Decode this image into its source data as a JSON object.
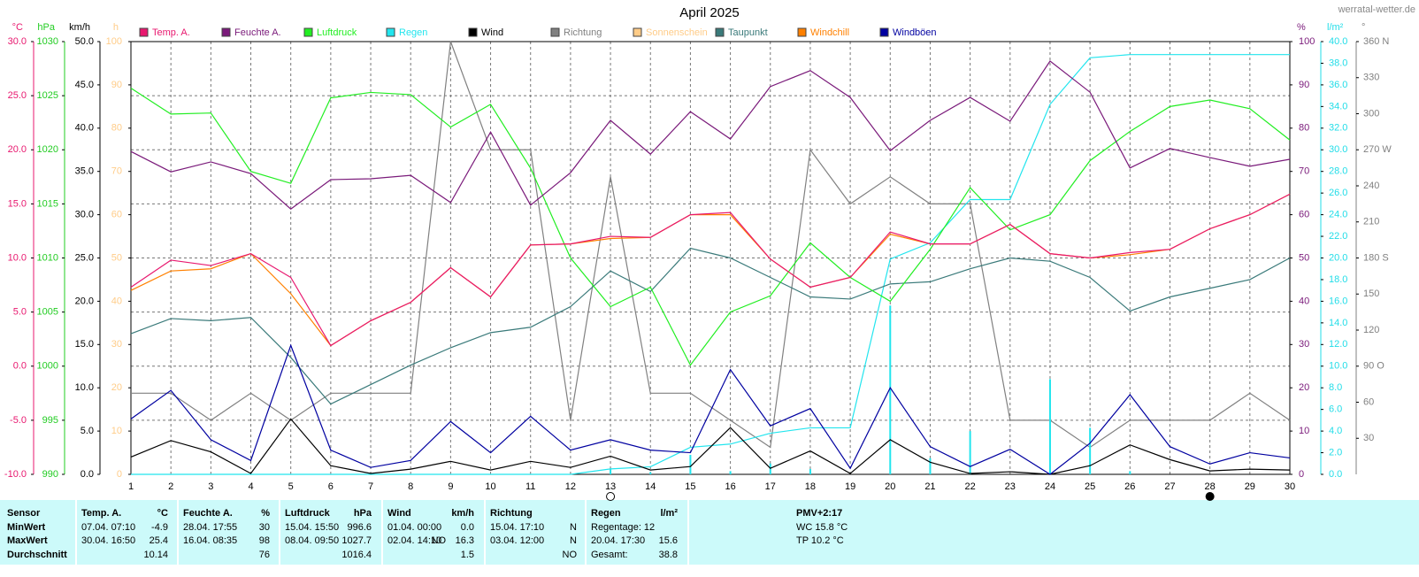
{
  "site": "werratal-wetter.de",
  "chart_data": {
    "type": "line",
    "title": "April 2025",
    "grid": true,
    "x": [
      1,
      2,
      3,
      4,
      5,
      6,
      7,
      8,
      9,
      10,
      11,
      12,
      13,
      14,
      15,
      16,
      17,
      18,
      19,
      20,
      21,
      22,
      23,
      24,
      25,
      26,
      27,
      28,
      29,
      30
    ],
    "xlim": [
      1,
      30
    ],
    "axes": [
      {
        "id": "temp",
        "side": "left",
        "unit": "°C",
        "color": "#e8186f",
        "lim": [
          -10,
          30
        ],
        "ticks": [
          {
            "value": 30,
            "label": "30.0"
          },
          {
            "value": 25,
            "label": "25.0"
          },
          {
            "value": 20,
            "label": "20.0"
          },
          {
            "value": 15,
            "label": "15.0"
          },
          {
            "value": 10,
            "label": "10.0"
          },
          {
            "value": 5,
            "label": "5.0"
          },
          {
            "value": 0,
            "label": "0.0"
          },
          {
            "value": -5,
            "label": "-5.0"
          },
          {
            "value": -10,
            "label": "-10.0"
          }
        ]
      },
      {
        "id": "hpa",
        "side": "left",
        "unit": "hPa",
        "color": "#22cc22",
        "lim": [
          990,
          1030
        ],
        "ticks": [
          1030,
          1025,
          1020,
          1015,
          1010,
          1005,
          1000,
          995,
          990
        ]
      },
      {
        "id": "kmh",
        "side": "left",
        "unit": "km/h",
        "color": "#000000",
        "lim": [
          0,
          50
        ],
        "ticks": [
          {
            "value": 50,
            "label": "50.0"
          },
          {
            "value": 45,
            "label": "45.0"
          },
          {
            "value": 40,
            "label": "40.0"
          },
          {
            "value": 35,
            "label": "35.0"
          },
          {
            "value": 30,
            "label": "30.0"
          },
          {
            "value": 25,
            "label": "25.0"
          },
          {
            "value": 20,
            "label": "20.0"
          },
          {
            "value": 15,
            "label": "15.0"
          },
          {
            "value": 10,
            "label": "10.0"
          },
          {
            "value": 5,
            "label": "5.0"
          },
          {
            "value": 0,
            "label": "0.0"
          }
        ]
      },
      {
        "id": "h",
        "side": "left",
        "unit": "h",
        "color": "#ffcc88",
        "lim": [
          0,
          100
        ],
        "ticks": [
          100,
          90,
          80,
          70,
          60,
          50,
          40,
          30,
          20,
          10,
          0
        ]
      },
      {
        "id": "pct",
        "side": "right",
        "unit": "%",
        "color": "#7a1a7a",
        "lim": [
          0,
          100
        ],
        "ticks": [
          100,
          90,
          80,
          70,
          60,
          50,
          40,
          30,
          20,
          10,
          0
        ]
      },
      {
        "id": "rain",
        "side": "right",
        "unit": "l/m²",
        "color": "#22dde8",
        "lim": [
          0,
          40
        ],
        "ticks": [
          {
            "value": 40,
            "label": "40.0"
          },
          {
            "value": 38,
            "label": "38.0"
          },
          {
            "value": 36,
            "label": "36.0"
          },
          {
            "value": 34,
            "label": "34.0"
          },
          {
            "value": 32,
            "label": "32.0"
          },
          {
            "value": 30,
            "label": "30.0"
          },
          {
            "value": 28,
            "label": "28.0"
          },
          {
            "value": 26,
            "label": "26.0"
          },
          {
            "value": 24,
            "label": "24.0"
          },
          {
            "value": 22,
            "label": "22.0"
          },
          {
            "value": 20,
            "label": "20.0"
          },
          {
            "value": 18,
            "label": "18.0"
          },
          {
            "value": 16,
            "label": "16.0"
          },
          {
            "value": 14,
            "label": "14.0"
          },
          {
            "value": 12,
            "label": "12.0"
          },
          {
            "value": 10,
            "label": "10.0"
          },
          {
            "value": 8,
            "label": "8.0"
          },
          {
            "value": 6,
            "label": "6.0"
          },
          {
            "value": 4,
            "label": "4.0"
          },
          {
            "value": 2,
            "label": "2.0"
          },
          {
            "value": 0,
            "label": "0.0"
          }
        ]
      },
      {
        "id": "dir",
        "side": "right",
        "unit": "°",
        "color": "#808080",
        "lim": [
          0,
          360
        ],
        "ticks": [
          {
            "value": 360,
            "label": "360 N"
          },
          330,
          300,
          {
            "value": 270,
            "label": "270 W"
          },
          240,
          210,
          {
            "value": 180,
            "label": "180 S"
          },
          150,
          120,
          {
            "value": 90,
            "label": "90 O"
          },
          60,
          30
        ]
      }
    ],
    "series": [
      {
        "name": "Temp. A.",
        "color": "#e8186f",
        "axis": "temp",
        "values": [
          7.3,
          9.8,
          9.3,
          10.4,
          8.2,
          1.9,
          4.2,
          5.9,
          9.1,
          6.4,
          11.2,
          11.3,
          12.0,
          11.9,
          14.0,
          14.2,
          9.9,
          7.3,
          8.2,
          12.4,
          11.3,
          11.3,
          13.1,
          10.4,
          10.0,
          10.5,
          10.8,
          12.7,
          14.0,
          15.9
        ]
      },
      {
        "name": "Feuchte A.",
        "color": "#7a1a7a",
        "axis": "pct",
        "values": [
          74.6,
          69.9,
          72.2,
          69.5,
          61.3,
          68.1,
          68.3,
          69.1,
          62.8,
          79.1,
          62.2,
          69.7,
          81.8,
          74.0,
          83.8,
          77.5,
          89.6,
          93.3,
          87.1,
          74.8,
          81.8,
          87.1,
          81.6,
          95.5,
          88.3,
          70.8,
          75.3,
          73.2,
          71.2,
          72.8
        ]
      },
      {
        "name": "Luftdruck",
        "color": "#22ee22",
        "axis": "hpa",
        "values": [
          1025.7,
          1023.3,
          1023.4,
          1018.0,
          1016.9,
          1024.8,
          1025.3,
          1025.1,
          1022.1,
          1024.2,
          1018.3,
          1010.0,
          1005.5,
          1007.3,
          1000.1,
          1005.0,
          1006.5,
          1011.4,
          1008.2,
          1006.0,
          1010.8,
          1016.5,
          1012.6,
          1014.0,
          1019.0,
          1021.7,
          1024.0,
          1024.6,
          1023.8,
          1020.9
        ]
      },
      {
        "name": "Regen",
        "color": "#22e5ee",
        "axis": "rain",
        "values": [
          0,
          0,
          0,
          0,
          0,
          0,
          0,
          0,
          0,
          0,
          0,
          0,
          0.5,
          0.7,
          2.5,
          2.8,
          3.8,
          4.3,
          4.3,
          19.9,
          21.4,
          25.4,
          25.4,
          34.2,
          38.5,
          38.8,
          38.8,
          38.8,
          38.8,
          38.8
        ],
        "daily": [
          0,
          0,
          0,
          0,
          0,
          0,
          0,
          0,
          0,
          0,
          0,
          0,
          0.5,
          0.2,
          1.8,
          0.3,
          1.0,
          0.5,
          0,
          15.6,
          1.5,
          4.0,
          0,
          8.8,
          4.3,
          0.3,
          0,
          0,
          0,
          0
        ]
      },
      {
        "name": "Wind",
        "color": "#000000",
        "axis": "kmh",
        "values": [
          2.0,
          3.9,
          2.6,
          0.1,
          6.4,
          1.0,
          0.1,
          0.6,
          1.5,
          0.5,
          1.5,
          0.8,
          2.1,
          0.5,
          0.9,
          5.4,
          0.7,
          2.7,
          0.1,
          4.0,
          1.4,
          0.1,
          0.3,
          0,
          1.0,
          3.4,
          1.7,
          0.4,
          0.6,
          0.5
        ]
      },
      {
        "name": "Richtung",
        "color": "#808080",
        "axis": "dir",
        "values": [
          67.5,
          67.5,
          45,
          67.5,
          45,
          67.5,
          67.5,
          67.5,
          360,
          270,
          270,
          45,
          247.5,
          67.5,
          67.5,
          45,
          22.5,
          270,
          225,
          247.5,
          225,
          225,
          45,
          45,
          22.5,
          45,
          45,
          45,
          67.5,
          45
        ]
      },
      {
        "name": "Sonnenschein",
        "color": "#ffcc88",
        "axis": "h"
      },
      {
        "name": "Taupunkt",
        "color": "#3a7a7a",
        "axis": "temp",
        "values": [
          3.0,
          4.4,
          4.2,
          4.5,
          0.8,
          -3.5,
          -1.7,
          0.1,
          1.7,
          3.1,
          3.6,
          5.5,
          8.8,
          6.9,
          10.9,
          10.0,
          8.2,
          6.4,
          6.2,
          7.6,
          7.8,
          9.0,
          10.0,
          9.7,
          8.2,
          5.1,
          6.4,
          7.2,
          8.0,
          10.0
        ]
      },
      {
        "name": "Windchill",
        "color": "#ff8000",
        "axis": "temp",
        "values": [
          7.0,
          8.8,
          9.0,
          10.4,
          6.7,
          1.9,
          4.2,
          5.9,
          9.1,
          6.4,
          11.2,
          11.3,
          11.8,
          11.9,
          14.0,
          14.0,
          9.9,
          7.3,
          8.2,
          12.2,
          11.3,
          11.3,
          13.1,
          10.4,
          10.0,
          10.3,
          10.8,
          12.7,
          14.0,
          15.9
        ]
      },
      {
        "name": "Windböen",
        "color": "#0000a0",
        "axis": "kmh",
        "values": [
          6.4,
          9.7,
          4.0,
          1.6,
          14.9,
          2.8,
          0.8,
          1.6,
          6.1,
          2.5,
          6.7,
          2.8,
          4.0,
          2.8,
          2.5,
          12.1,
          5.6,
          7.6,
          0.7,
          10.0,
          3.2,
          0.9,
          2.9,
          0.0,
          3.6,
          9.2,
          3.2,
          1.2,
          2.5,
          1.9
        ]
      }
    ],
    "moons": [
      {
        "x": 13,
        "phase": "full"
      },
      {
        "x": 28,
        "phase": "new"
      }
    ]
  },
  "table": {
    "columns": [
      {
        "title": "Sensor"
      },
      {
        "title": "Temp. A.",
        "unit": "°C"
      },
      {
        "title": "Feuchte A.",
        "unit": "%"
      },
      {
        "title": "Luftdruck",
        "unit": "hPa"
      },
      {
        "title": "Wind",
        "unit": "km/h"
      },
      {
        "title": "Richtung"
      },
      {
        "title": "Regen",
        "unit": "l/m²"
      }
    ],
    "rows": [
      {
        "label": "MinWert",
        "cells": [
          {
            "when": "07.04. 07:10",
            "value": "-4.9"
          },
          {
            "when": "28.04. 17:55",
            "value": "30"
          },
          {
            "when": "15.04. 15:50",
            "value": "996.6"
          },
          {
            "when": "01.04. 00:00",
            "value": "0.0"
          },
          {
            "when": "15.04. 17:10",
            "value": "N"
          },
          {
            "when": "Regentage: 12"
          }
        ]
      },
      {
        "label": "MaxWert",
        "cells": [
          {
            "when": "30.04. 16:50",
            "value": "25.4"
          },
          {
            "when": "16.04. 08:35",
            "value": "98"
          },
          {
            "when": "08.04. 09:50",
            "value": "1027.7"
          },
          {
            "when": "02.04. 14:10",
            "dir": "NO",
            "value": "16.3"
          },
          {
            "when": "03.04. 12:00",
            "value": "N"
          },
          {
            "when": "20.04. 17:30",
            "value": "15.6"
          }
        ]
      },
      {
        "label": "Durchschnitt",
        "cells": [
          {
            "value": "10.14"
          },
          {
            "value": "76"
          },
          {
            "value": "1016.4"
          },
          {
            "value": "1.5"
          },
          {
            "value": "NO"
          },
          {
            "when": "Gesamt:",
            "value": "38.8"
          }
        ]
      }
    ],
    "pmv": {
      "title": "PMV+2:17",
      "lines": [
        "WC 15.8 °C",
        "TP 10.2 °C"
      ]
    }
  }
}
